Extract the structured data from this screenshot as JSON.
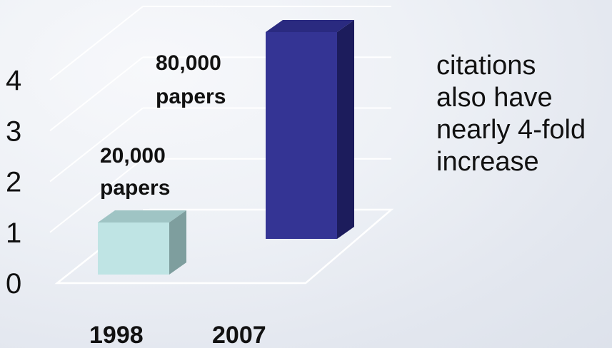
{
  "chart_data": {
    "type": "bar",
    "categories": [
      "1998",
      "2007"
    ],
    "values": [
      1,
      4
    ],
    "ylim": [
      0,
      4
    ],
    "yticks": [
      "0",
      "1",
      "2",
      "3",
      "4"
    ],
    "grid": true,
    "data_labels": [
      [
        "20,000",
        "papers"
      ],
      [
        "80,000",
        "papers"
      ]
    ],
    "colors": {
      "bar_1998_front": "#bfe4e4",
      "bar_1998_top": "#9fc4c4",
      "bar_1998_side": "#7e9e9e",
      "bar_2007_front": "#343494",
      "bar_2007_top": "#2a2a80",
      "bar_2007_side": "#1c1c5c",
      "grid": "#ffffff"
    }
  },
  "annotation": {
    "lines": [
      "citations",
      "also have",
      "nearly 4-fold",
      "increase"
    ]
  }
}
